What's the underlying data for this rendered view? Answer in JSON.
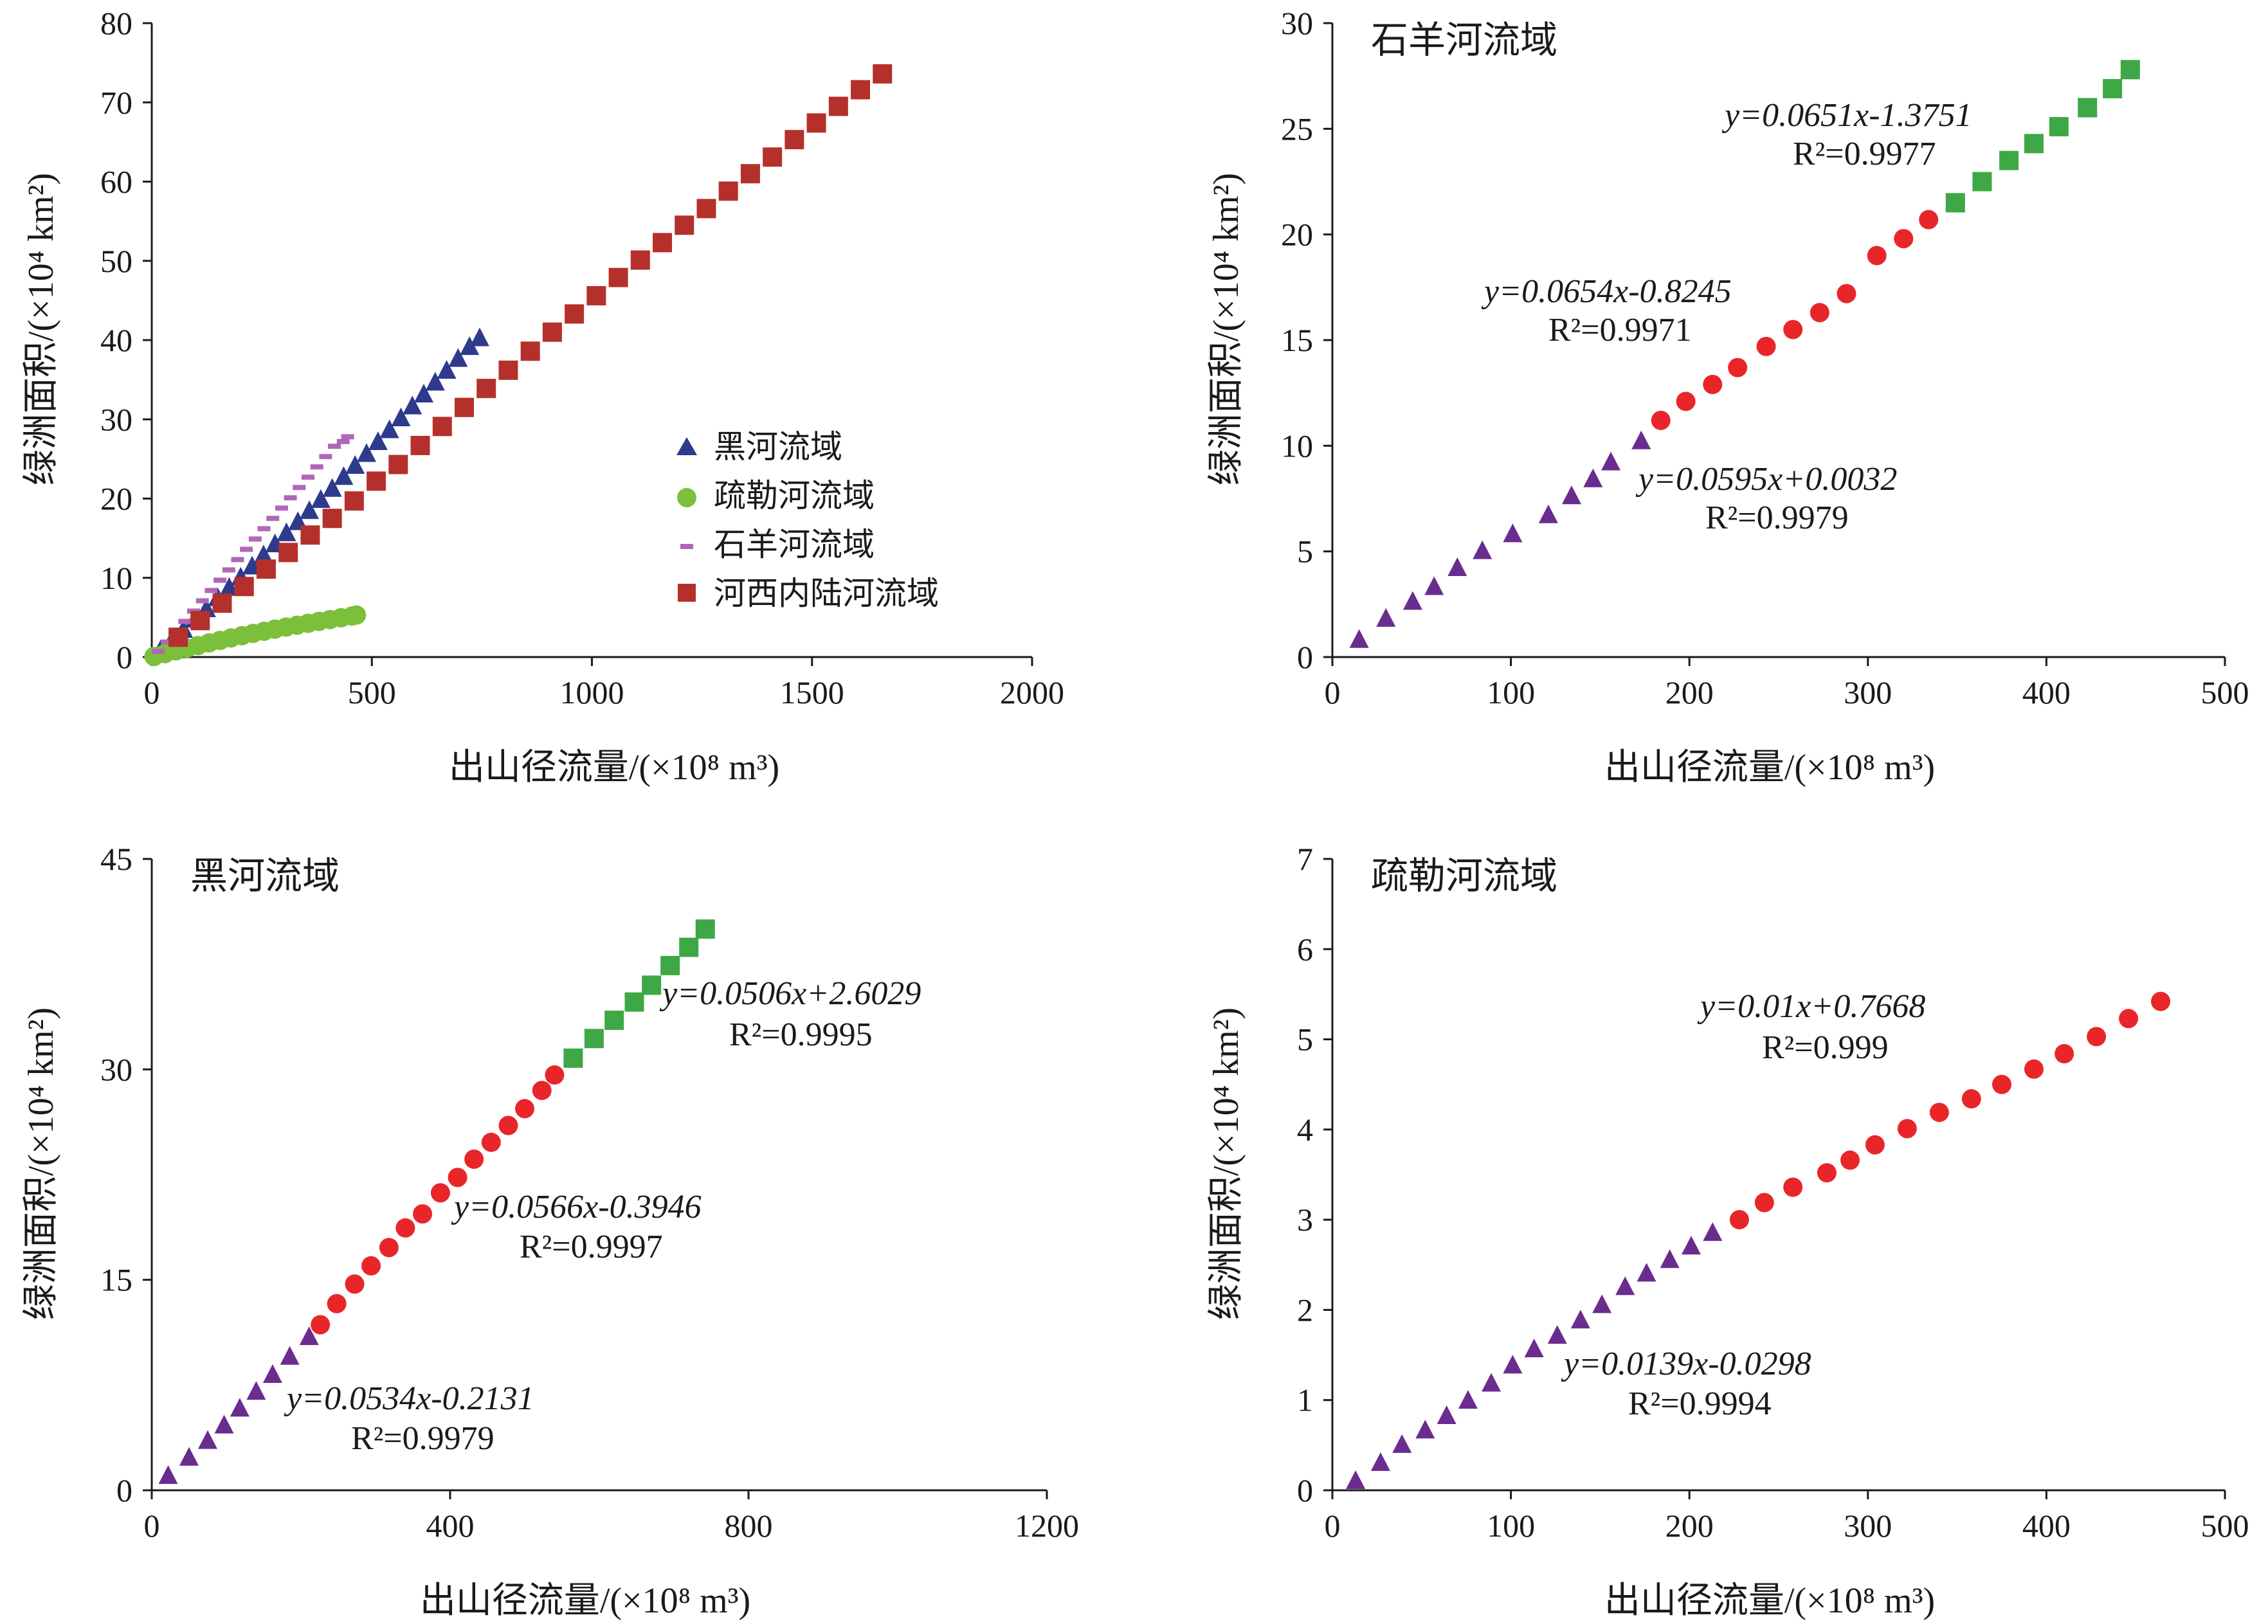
{
  "chart_data": [
    {
      "id": "p1",
      "type": "scatter",
      "title": "",
      "xlabel": "出山径流量/(×10⁸ m³)",
      "ylabel": "绿洲面积/(×10⁴ km²)",
      "xlim": [
        0,
        2000
      ],
      "ylim": [
        0,
        80
      ],
      "xticks": [
        0,
        500,
        1000,
        1500,
        2000
      ],
      "yticks": [
        0,
        10,
        20,
        30,
        40,
        50,
        60,
        70,
        80
      ],
      "legend_position": "bottom-right",
      "grid": false,
      "series": [
        {
          "name": "黑河流域",
          "marker": "triangle",
          "color": "#2e3a8c",
          "x": [
            20,
            46,
            72,
            98,
            124,
            150,
            176,
            202,
            228,
            254,
            280,
            306,
            332,
            358,
            384,
            410,
            436,
            462,
            488,
            514,
            540,
            566,
            592,
            618,
            644,
            670,
            696,
            722,
            745
          ],
          "y": [
            0.8,
            2.1,
            3.4,
            4.7,
            6.0,
            7.4,
            8.7,
            10.0,
            11.4,
            12.8,
            14.2,
            15.6,
            17.0,
            18.4,
            19.8,
            21.2,
            22.7,
            24.1,
            25.6,
            27.1,
            28.6,
            30.1,
            31.6,
            33.1,
            34.6,
            36.1,
            37.6,
            39.1,
            40.2
          ]
        },
        {
          "name": "疏勒河流域",
          "marker": "circle",
          "color": "#7bbf3a",
          "x": [
            5,
            30,
            55,
            80,
            105,
            130,
            155,
            180,
            205,
            230,
            255,
            280,
            305,
            330,
            355,
            380,
            405,
            430,
            455,
            465
          ],
          "y": [
            0.07,
            0.43,
            0.78,
            1.12,
            1.45,
            1.78,
            2.1,
            2.41,
            2.7,
            2.98,
            3.25,
            3.52,
            3.78,
            4.02,
            4.26,
            4.5,
            4.73,
            4.96,
            5.18,
            5.3
          ]
        },
        {
          "name": "石羊河流域",
          "marker": "dash",
          "color": "#b067b8",
          "x": [
            15,
            35,
            55,
            75,
            95,
            115,
            135,
            155,
            175,
            195,
            215,
            235,
            255,
            275,
            295,
            315,
            335,
            355,
            375,
            395,
            415,
            435,
            445
          ],
          "y": [
            0.7,
            1.9,
            3.2,
            4.5,
            5.8,
            7.1,
            8.4,
            9.7,
            11.0,
            12.3,
            13.6,
            14.9,
            16.2,
            17.5,
            18.8,
            20.1,
            21.4,
            22.7,
            24.0,
            25.3,
            26.6,
            27.2,
            27.8
          ]
        },
        {
          "name": "河西内陆河流域",
          "marker": "square",
          "color": "#b5302b",
          "x": [
            60,
            110,
            160,
            210,
            260,
            310,
            360,
            410,
            460,
            510,
            560,
            610,
            660,
            710,
            760,
            810,
            860,
            910,
            960,
            1010,
            1060,
            1110,
            1160,
            1210,
            1260,
            1310,
            1360,
            1410,
            1460,
            1510,
            1560,
            1610,
            1660
          ],
          "y": [
            2.5,
            4.6,
            6.8,
            8.9,
            11.1,
            13.2,
            15.4,
            17.5,
            19.7,
            22.2,
            24.3,
            26.7,
            29.1,
            31.5,
            33.9,
            36.2,
            38.6,
            41.0,
            43.3,
            45.6,
            47.9,
            50.1,
            52.3,
            54.5,
            56.6,
            58.8,
            61.0,
            63.1,
            65.3,
            67.4,
            69.5,
            71.6,
            73.6
          ]
        }
      ]
    },
    {
      "id": "p2",
      "type": "scatter",
      "title": "石羊河流域",
      "xlabel": "出山径流量/(×10⁸ m³)",
      "ylabel": "绿洲面积/(×10⁴ km²)",
      "xlim": [
        0,
        500
      ],
      "ylim": [
        0,
        30
      ],
      "xticks": [
        0,
        100,
        200,
        300,
        400,
        500
      ],
      "yticks": [
        0,
        5,
        10,
        15,
        20,
        25,
        30
      ],
      "grid": false,
      "series": [
        {
          "marker": "triangle",
          "color": "#6a2c8f",
          "x": [
            15,
            30,
            45,
            57,
            70,
            84,
            101,
            121,
            134,
            146,
            156,
            173
          ],
          "y": [
            0.8,
            1.8,
            2.6,
            3.3,
            4.2,
            5.0,
            5.8,
            6.7,
            7.6,
            8.4,
            9.2,
            10.2
          ]
        },
        {
          "marker": "circle",
          "color": "#e8262a",
          "x": [
            184,
            198,
            213,
            227,
            243,
            258,
            273,
            288,
            305,
            320,
            334
          ],
          "y": [
            11.2,
            12.1,
            12.9,
            13.7,
            14.7,
            15.5,
            16.3,
            17.2,
            19.0,
            19.8,
            20.7
          ]
        },
        {
          "marker": "square",
          "color": "#3da845",
          "x": [
            349,
            364,
            379,
            393,
            407,
            423,
            437,
            447
          ],
          "y": [
            21.5,
            22.5,
            23.5,
            24.3,
            25.1,
            26.0,
            26.9,
            27.8
          ]
        }
      ],
      "annotations": [
        {
          "eq": "y=0.0651x-1.3751",
          "r2": "R²=0.9977"
        },
        {
          "eq": "y=0.0654x-0.8245",
          "r2": "R²=0.9971"
        },
        {
          "eq": "y=0.0595x+0.0032",
          "r2": "R²=0.9979"
        }
      ]
    },
    {
      "id": "p3",
      "type": "scatter",
      "title": "黑河流域",
      "xlabel": "出山径流量/(×10⁸ m³)",
      "ylabel": "绿洲面积/(×10⁴ km²)",
      "xlim": [
        0,
        1200
      ],
      "ylim": [
        0,
        45
      ],
      "xticks": [
        0,
        400,
        800,
        1200
      ],
      "yticks": [
        0,
        15,
        30,
        45
      ],
      "grid": false,
      "series": [
        {
          "marker": "triangle",
          "color": "#6a2c8f",
          "x": [
            22,
            50,
            75,
            97,
            118,
            140,
            162,
            185,
            211
          ],
          "y": [
            1.0,
            2.3,
            3.5,
            4.6,
            5.8,
            7.0,
            8.2,
            9.5,
            10.9
          ]
        },
        {
          "marker": "circle",
          "color": "#e8262a",
          "x": [
            226,
            248,
            272,
            294,
            318,
            340,
            363,
            387,
            410,
            432,
            455,
            478,
            500,
            523,
            540
          ],
          "y": [
            11.8,
            13.3,
            14.7,
            16.0,
            17.3,
            18.7,
            19.7,
            21.2,
            22.3,
            23.6,
            24.8,
            26.0,
            27.2,
            28.5,
            29.6
          ]
        },
        {
          "marker": "square",
          "color": "#3da845",
          "x": [
            565,
            593,
            620,
            647,
            670,
            695,
            720,
            742
          ],
          "y": [
            30.8,
            32.2,
            33.5,
            34.8,
            36.0,
            37.4,
            38.7,
            40.0
          ]
        }
      ],
      "annotations": [
        {
          "eq": "y=0.0506x+2.6029",
          "r2": "R²=0.9995"
        },
        {
          "eq": "y=0.0566x-0.3946",
          "r2": "R²=0.9997"
        },
        {
          "eq": "y=0.0534x-0.2131",
          "r2": "R²=0.9979"
        }
      ]
    },
    {
      "id": "p4",
      "type": "scatter",
      "title": "疏勒河流域",
      "xlabel": "出山径流量/(×10⁸ m³)",
      "ylabel": "绿洲面积/(×10⁴ km²)",
      "xlim": [
        0,
        500
      ],
      "ylim": [
        0,
        7
      ],
      "xticks": [
        0,
        100,
        200,
        300,
        400,
        500
      ],
      "yticks": [
        0,
        1,
        2,
        3,
        4,
        5,
        6,
        7
      ],
      "grid": false,
      "series": [
        {
          "marker": "triangle",
          "color": "#6a2c8f",
          "x": [
            13,
            27,
            39,
            52,
            64,
            76,
            89,
            101,
            113,
            126,
            139,
            151,
            164,
            176,
            189,
            201,
            213
          ],
          "y": [
            0.1,
            0.3,
            0.5,
            0.66,
            0.82,
            0.99,
            1.18,
            1.38,
            1.56,
            1.71,
            1.88,
            2.05,
            2.25,
            2.4,
            2.55,
            2.7,
            2.85
          ]
        },
        {
          "marker": "circle",
          "color": "#e8262a",
          "x": [
            228,
            242,
            258,
            277,
            290,
            304,
            322,
            340,
            358,
            375,
            393,
            410,
            428,
            446,
            464
          ],
          "y": [
            3.0,
            3.19,
            3.36,
            3.52,
            3.66,
            3.83,
            4.01,
            4.19,
            4.34,
            4.5,
            4.67,
            4.84,
            5.03,
            5.23,
            5.42
          ]
        }
      ],
      "annotations": [
        {
          "eq": "y=0.01x+0.7668",
          "r2": "R²=0.999"
        },
        {
          "eq": "y=0.0139x-0.0298",
          "r2": "R²=0.9994"
        }
      ]
    }
  ]
}
